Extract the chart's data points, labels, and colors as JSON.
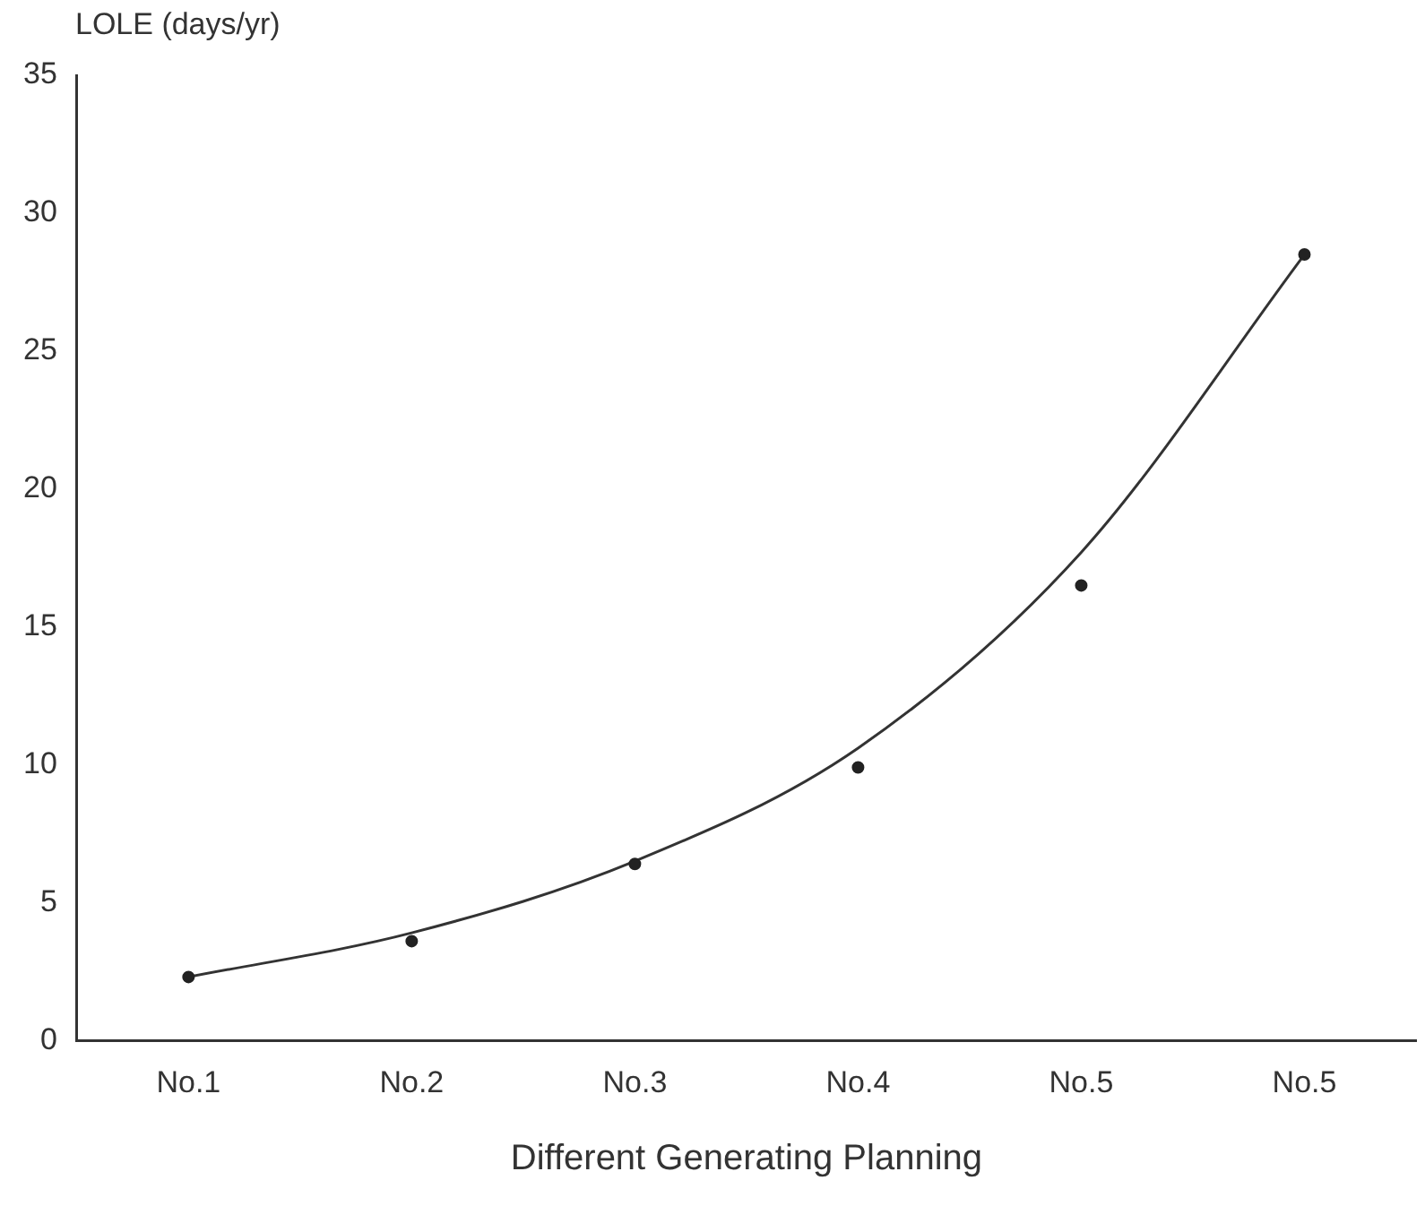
{
  "chart_data": {
    "type": "scatter",
    "ylabel": "LOLE (days/yr)",
    "xlabel": "Different Generating Planning",
    "categories": [
      "No.1",
      "No.2",
      "No.3",
      "No.4",
      "No.5",
      "No.5"
    ],
    "series": [
      {
        "color": "#222222",
        "marker": "circle",
        "values": [
          2.3,
          3.6,
          6.4,
          9.9,
          16.5,
          28.5
        ]
      },
      {
        "type": "line",
        "color": "#333333",
        "marker": "none",
        "values": [
          2.3,
          3.9,
          6.5,
          10.6,
          17.7,
          28.5
        ]
      }
    ],
    "ylim": [
      0,
      35
    ],
    "yticks": [
      0,
      5,
      10,
      15,
      20,
      25,
      30,
      35
    ],
    "grid": false,
    "legend": false
  }
}
